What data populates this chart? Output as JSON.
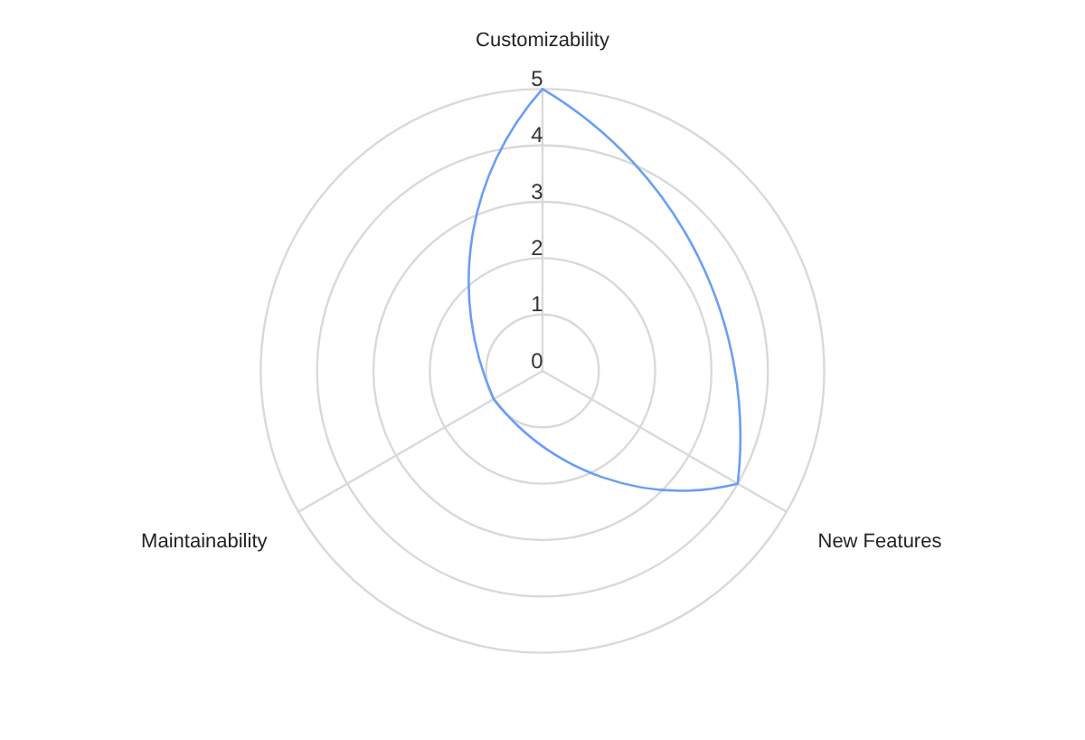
{
  "chart_data": {
    "type": "radar",
    "categories": [
      "Customizability",
      "New Features",
      "Maintainability"
    ],
    "series": [
      {
        "color": "#6a9ef5",
        "values": [
          5,
          4,
          1
        ]
      }
    ],
    "ylim": [
      0,
      5
    ],
    "yticks": [
      0,
      1,
      2,
      3,
      4,
      5
    ],
    "grid": true
  }
}
